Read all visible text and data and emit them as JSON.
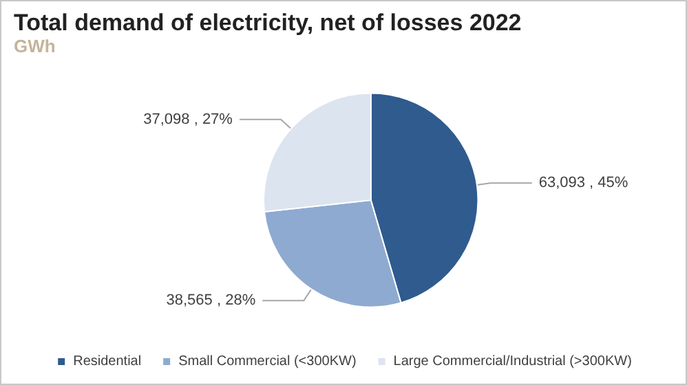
{
  "chart_data": {
    "type": "pie",
    "title": "Total demand of electricity, net of losses 2022",
    "subtitle": "GWh",
    "categories": [
      "Residential",
      "Small Commercial (<300KW)",
      "Large Commercial/Industrial (>300KW)"
    ],
    "values": [
      63093,
      38565,
      37098
    ],
    "colors": [
      "#2f5b8f",
      "#8eaad0",
      "#dce4f0"
    ],
    "value_labels": [
      "63,093 , 45%",
      "38,565 , 28%",
      "37,098 , 27%"
    ],
    "legend": "bottom"
  }
}
